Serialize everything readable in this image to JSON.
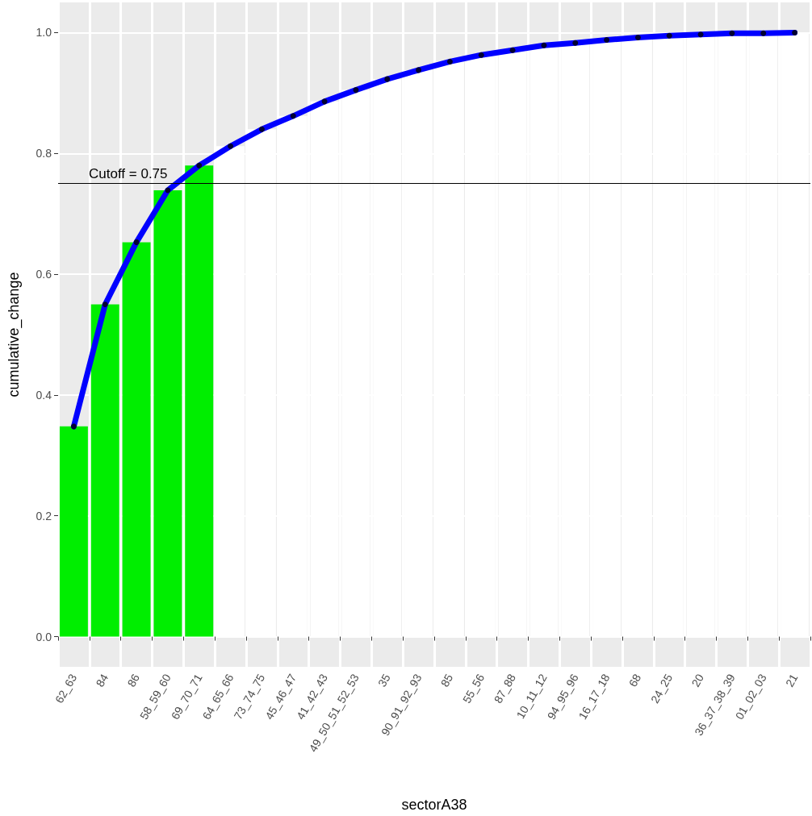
{
  "chart_data": {
    "type": "bar",
    "xlabel": "sectorA38",
    "ylabel": "cumulative_change",
    "categories": [
      "62_63",
      "84",
      "86",
      "58_59_60",
      "69_70_71",
      "64_65_66",
      "73_74_75",
      "45_46_47",
      "41_42_43",
      "49_50_51_52_53",
      "35",
      "90_91_92_93",
      "85",
      "55_56",
      "87_88",
      "10_11_12",
      "94_95_96",
      "16_17_18",
      "68",
      "24_25",
      "20",
      "36_37_38_39",
      "01_02_03",
      "21"
    ],
    "series": [
      {
        "colors": [
          "#00ee00",
          "#00ee00",
          "#00ee00",
          "#00ee00",
          "#00ee00",
          "#ffffff",
          "#ffffff",
          "#ffffff",
          "#ffffff",
          "#ffffff",
          "#ffffff",
          "#ffffff",
          "#ffffff",
          "#ffffff",
          "#ffffff",
          "#ffffff",
          "#ffffff",
          "#ffffff",
          "#ffffff",
          "#ffffff",
          "#ffffff",
          "#ffffff",
          "#ffffff",
          "#ffffff"
        ],
        "values": [
          0.348,
          0.55,
          0.653,
          0.739,
          0.78,
          0.812,
          0.84,
          0.862,
          0.886,
          0.905,
          0.923,
          0.938,
          0.952,
          0.963,
          0.971,
          0.979,
          0.983,
          0.988,
          0.992,
          0.995,
          0.997,
          0.999,
          0.999,
          1.0
        ]
      },
      {
        "type": "line",
        "color": "#0000ff",
        "marker": "none",
        "line_style": "solid",
        "values": [
          0.348,
          0.55,
          0.653,
          0.739,
          0.78,
          0.812,
          0.84,
          0.862,
          0.886,
          0.905,
          0.923,
          0.938,
          0.952,
          0.963,
          0.971,
          0.979,
          0.983,
          0.988,
          0.992,
          0.995,
          0.997,
          0.999,
          0.999,
          1.0
        ]
      },
      {
        "type": "scatter",
        "color": "#000000",
        "marker": "circle",
        "values": [
          0.348,
          0.55,
          0.653,
          0.739,
          0.78,
          0.812,
          0.84,
          0.862,
          0.886,
          0.905,
          0.923,
          0.938,
          0.952,
          0.963,
          0.971,
          0.979,
          0.983,
          0.988,
          0.992,
          0.995,
          0.997,
          0.999,
          0.999,
          1.0
        ]
      }
    ],
    "ylim": [
      -0.05,
      1.05
    ],
    "yticks": [
      {
        "value": 0,
        "label": "0.0"
      },
      0.2,
      0.4,
      0.6,
      0.8,
      {
        "value": 1,
        "label": "1.0"
      }
    ],
    "ref_lines": [
      {
        "axis": "y",
        "value": 0.75,
        "label": "Cutoff = 0.75",
        "color": "#000000"
      }
    ],
    "grid": true
  }
}
